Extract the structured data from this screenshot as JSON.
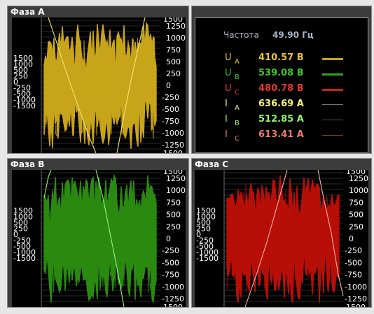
{
  "panels": {
    "phase_a": {
      "title": "Фаза A",
      "color": "#c8a41a",
      "line_color": "#f2e870"
    },
    "phase_b": {
      "title": "Фаза B",
      "color": "#2a8a10",
      "line_color": "#9ef07a"
    },
    "phase_c": {
      "title": "Фаза C",
      "color": "#b80e08",
      "line_color": "#f7b0a0"
    }
  },
  "axis": {
    "right_ticks_top": [
      "1250",
      "1000",
      "750",
      "500",
      "250",
      "0",
      "-250",
      "-500",
      "-750",
      "-1000",
      "-1250"
    ],
    "left_ticks": [
      "1500",
      "1000",
      "500",
      "250",
      "0",
      "-250",
      "-500",
      "-1000",
      "-1500"
    ],
    "clipped_top": "1500",
    "clipped_bottom": "1500"
  },
  "info": {
    "frequency_label": "Частота",
    "frequency_value": "49.90 Гц",
    "rows": [
      {
        "sym": "U",
        "sub": "A",
        "value": "410.57 В",
        "color": "#e8c22a"
      },
      {
        "sym": "U",
        "sub": "B",
        "value": "539.08 В",
        "color": "#3fc02a"
      },
      {
        "sym": "U",
        "sub": "C",
        "value": "480.78 В",
        "color": "#e0382a"
      },
      {
        "sym": "I",
        "sub": "A",
        "value": "636.69 A",
        "color": "#f4ef7a"
      },
      {
        "sym": "I",
        "sub": "B",
        "value": "512.85 A",
        "color": "#8ff070"
      },
      {
        "sym": "I",
        "sub": "C",
        "value": "613.41 A",
        "color": "#f0786a"
      }
    ],
    "line_colors": [
      "#c8a41a",
      "#2ea81a",
      "#c4221a",
      "#7a7a5a",
      "#3a6a2a",
      "#8a3a2a"
    ]
  }
}
